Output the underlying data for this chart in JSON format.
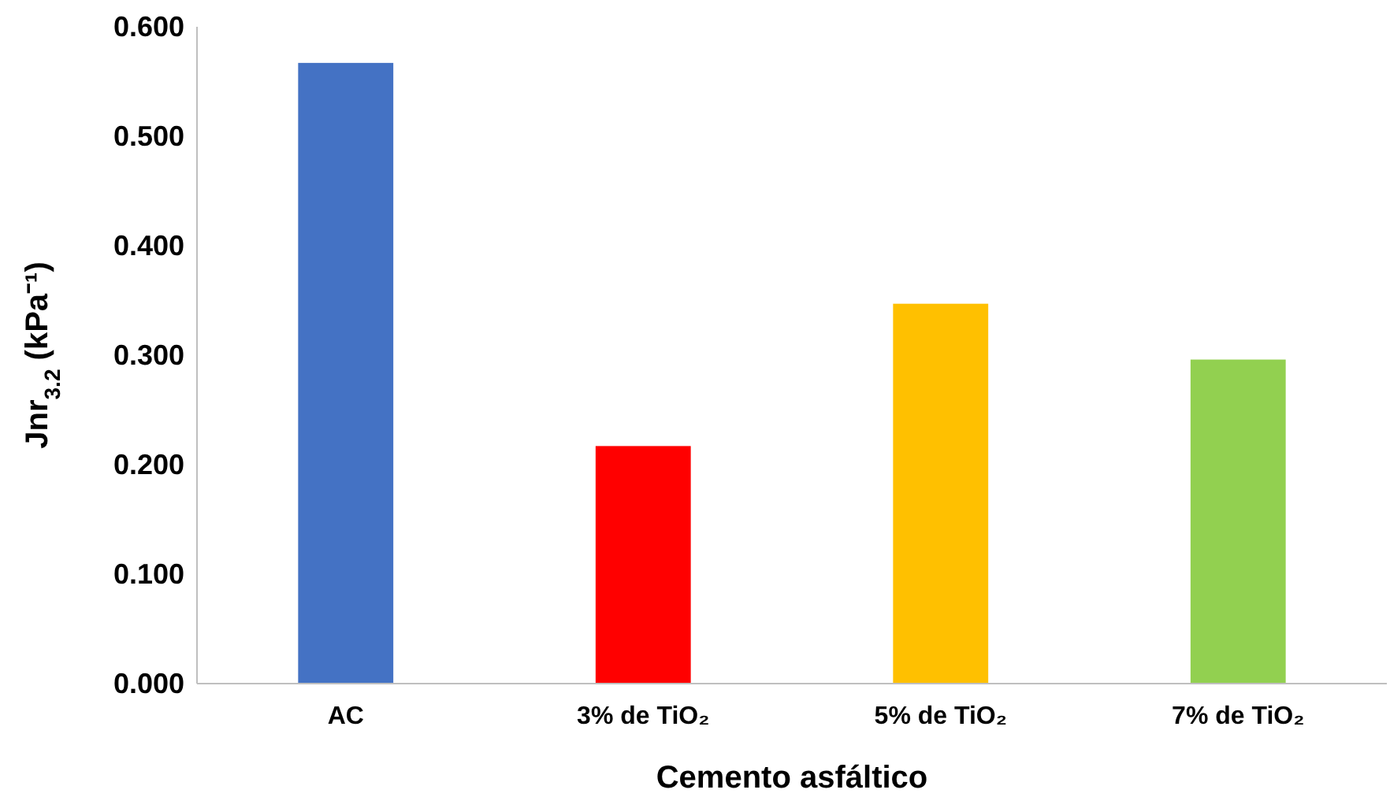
{
  "chart_data": {
    "type": "bar",
    "xlabel": "Cemento asfáltico",
    "ylabel": "Jnr$_{3.2}$ (kPa⁻¹)",
    "categories": [
      "AC",
      "3% de TiO₂",
      "5% de TiO₂",
      "7% de TiO₂"
    ],
    "values": [
      0.567,
      0.217,
      0.347,
      0.296
    ],
    "colors": [
      "#4472c4",
      "#ff0000",
      "#ffc000",
      "#92d050"
    ],
    "ylim": [
      0,
      0.6
    ],
    "yticks": [
      {
        "value": 0,
        "label": "0.000"
      },
      {
        "value": 0.1,
        "label": "0.100"
      },
      {
        "value": 0.2,
        "label": "0.200"
      },
      {
        "value": 0.3,
        "label": "0.300"
      },
      {
        "value": 0.4,
        "label": "0.400"
      },
      {
        "value": 0.5,
        "label": "0.500"
      },
      {
        "value": 0.6,
        "label": "0.600"
      }
    ],
    "grid": false
  }
}
